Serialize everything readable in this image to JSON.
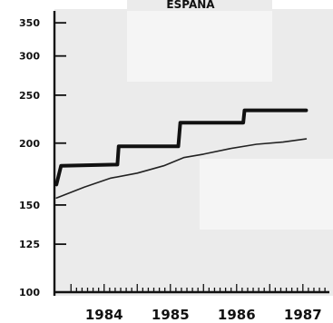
{
  "chart_data": {
    "type": "line",
    "title": "ESPANA",
    "xlabel": "",
    "ylabel": "",
    "scale": "log",
    "ylim": [
      100,
      370
    ],
    "xlim": [
      1983.75,
      1987.9
    ],
    "y_ticks": [
      100,
      125,
      150,
      200,
      250,
      300,
      350
    ],
    "x_labels": [
      "1984",
      "1985",
      "1986",
      "1987"
    ],
    "grid": false,
    "series": [
      {
        "style": "thick",
        "color": "#111111",
        "points": [
          [
            1983.78,
            165
          ],
          [
            1983.85,
            180
          ],
          [
            1984.7,
            181
          ],
          [
            1984.72,
            197
          ],
          [
            1985.62,
            197
          ],
          [
            1985.65,
            220
          ],
          [
            1986.6,
            220
          ],
          [
            1986.62,
            233
          ],
          [
            1987.55,
            233
          ]
        ]
      },
      {
        "style": "thin",
        "color": "#222222",
        "points": [
          [
            1983.78,
            155
          ],
          [
            1984.2,
            163
          ],
          [
            1984.6,
            170
          ],
          [
            1985.0,
            174
          ],
          [
            1985.4,
            180
          ],
          [
            1985.7,
            187
          ],
          [
            1986.0,
            190
          ],
          [
            1986.4,
            195
          ],
          [
            1986.8,
            199
          ],
          [
            1987.2,
            201
          ],
          [
            1987.55,
            204
          ]
        ]
      }
    ]
  }
}
